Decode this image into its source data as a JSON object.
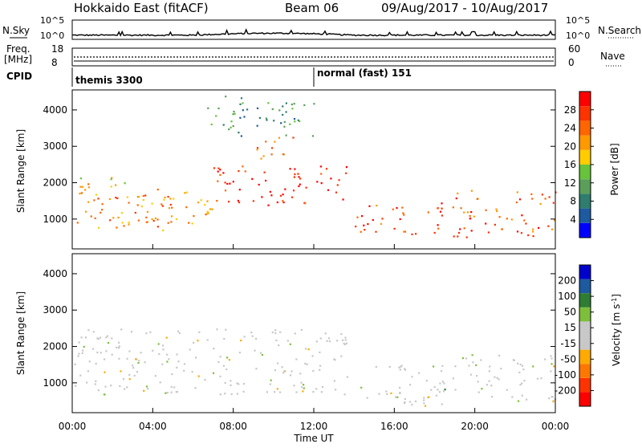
{
  "header": {
    "title": "Hokkaido East (fitACF)",
    "beam": "Beam 06",
    "date_range": "09/Aug/2017 - 10/Aug/2017"
  },
  "nsky_panel": {
    "left_label": "N.Sky",
    "right_label": "N.Search",
    "left_ticks": [
      "10^5",
      "10^0"
    ],
    "right_ticks": [
      "10^5",
      "10^0"
    ]
  },
  "freq_panel": {
    "left_label_line1": "Freq.",
    "left_label_line2": "[MHz]",
    "right_label": "Nave",
    "left_ticks": [
      "18",
      "8"
    ],
    "right_ticks": [
      "60",
      "0"
    ]
  },
  "cpid_panel": {
    "label": "CPID",
    "segments": [
      {
        "name": "themis 3300",
        "start_hour": 0
      },
      {
        "name": "normal (fast) 151",
        "start_hour": 12
      }
    ]
  },
  "x_axis": {
    "label": "Time UT",
    "ticks": [
      "00:00",
      "04:00",
      "08:00",
      "12:00",
      "16:00",
      "20:00",
      "00:00"
    ],
    "range_hours": [
      0,
      24
    ]
  },
  "chart_data": [
    {
      "type": "heatmap",
      "title": "Power",
      "ylabel": "Slant Range [km]",
      "ylim": [
        180,
        4550
      ],
      "yticks": [
        "1000",
        "2000",
        "3000",
        "4000"
      ],
      "yticks_values": [
        1000,
        2000,
        3000,
        4000
      ],
      "colorbar": {
        "label": "Power [dB]",
        "ticks": [
          "28",
          "24",
          "20",
          "16",
          "12",
          "8",
          "4"
        ],
        "colors": [
          "#0000ff",
          "#1e5aa0",
          "#2e7d6e",
          "#5a9e5a",
          "#66c33a",
          "#ffcc00",
          "#ff9900",
          "#ff6600",
          "#ff3300",
          "#ff0000"
        ]
      },
      "regions": [
        {
          "t0": 0.1,
          "t1": 5.0,
          "r0": 700,
          "r1": 1700,
          "level": 0.72
        },
        {
          "t0": 0.3,
          "t1": 3.0,
          "r0": 1500,
          "r1": 2200,
          "level": 0.6
        },
        {
          "t0": 3.0,
          "t1": 7.0,
          "r0": 900,
          "r1": 1900,
          "level": 0.68
        },
        {
          "t0": 7.0,
          "t1": 13.8,
          "r0": 1400,
          "r1": 2500,
          "level": 0.9
        },
        {
          "t0": 9.0,
          "t1": 11.0,
          "r0": 2600,
          "r1": 3300,
          "level": 0.7
        },
        {
          "t0": 14.0,
          "t1": 18.5,
          "r0": 600,
          "r1": 1500,
          "level": 0.85
        },
        {
          "t0": 18.8,
          "t1": 24.0,
          "r0": 500,
          "r1": 1800,
          "level": 0.78
        },
        {
          "t0": 6.5,
          "t1": 12.0,
          "r0": 3300,
          "r1": 4400,
          "level": 0.3
        }
      ]
    },
    {
      "type": "heatmap",
      "title": "Velocity",
      "ylabel": "Slant Range [km]",
      "ylim": [
        180,
        4550
      ],
      "yticks": [
        "1000",
        "2000",
        "3000",
        "4000"
      ],
      "yticks_values": [
        1000,
        2000,
        3000,
        4000
      ],
      "colorbar": {
        "label": "Velocity [m s^-1]",
        "ticks": [
          "200",
          "100",
          "50",
          "15",
          "-15",
          "-50",
          "-100",
          "-200"
        ],
        "colors": [
          "#ff0000",
          "#ff3300",
          "#ff7700",
          "#ffaa00",
          "#c8c8c8",
          "#c8c8c8",
          "#7dbf3a",
          "#2e7d32",
          "#1e5aa0",
          "#0000cc"
        ]
      },
      "regions": [
        {
          "t0": 0.1,
          "t1": 13.8,
          "r0": 700,
          "r1": 2500,
          "level": 0.5
        },
        {
          "t0": 14.0,
          "t1": 18.5,
          "r0": 500,
          "r1": 1500,
          "level": 0.62
        },
        {
          "t0": 15.5,
          "t1": 18.5,
          "r0": 350,
          "r1": 800,
          "level": 0.25
        },
        {
          "t0": 18.8,
          "t1": 24.0,
          "r0": 500,
          "r1": 1800,
          "level": 0.5
        }
      ]
    }
  ],
  "colors": {
    "axis": "#000000",
    "background": "#ffffff"
  }
}
